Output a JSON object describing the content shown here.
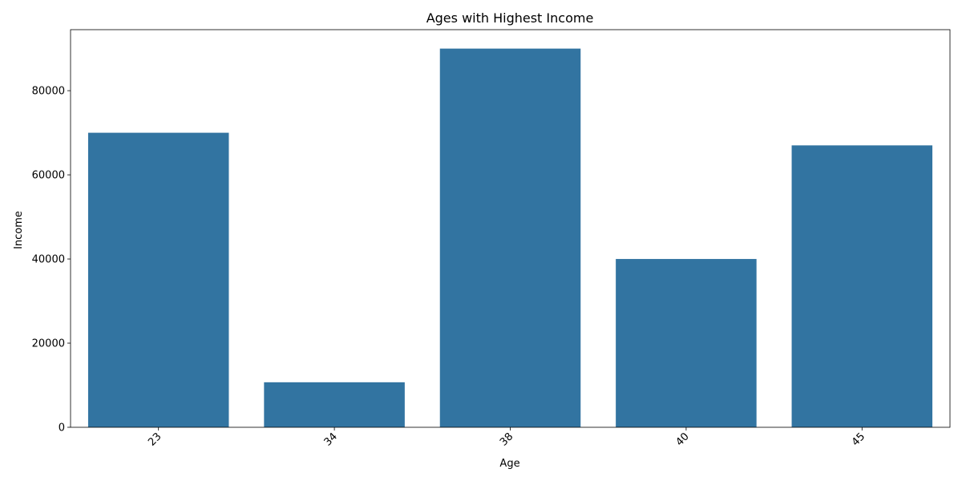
{
  "chart_data": {
    "type": "bar",
    "title": "Ages with Highest Income",
    "xlabel": "Age",
    "ylabel": "Income",
    "categories": [
      "23",
      "34",
      "38",
      "40",
      "45"
    ],
    "values": [
      70000,
      10700,
      90000,
      40000,
      67000
    ],
    "ylim": [
      0,
      94500
    ],
    "yticks": [
      0,
      20000,
      40000,
      60000,
      80000
    ],
    "bar_color": "#3274a1",
    "grid": false,
    "x_tick_rotation": "45"
  }
}
